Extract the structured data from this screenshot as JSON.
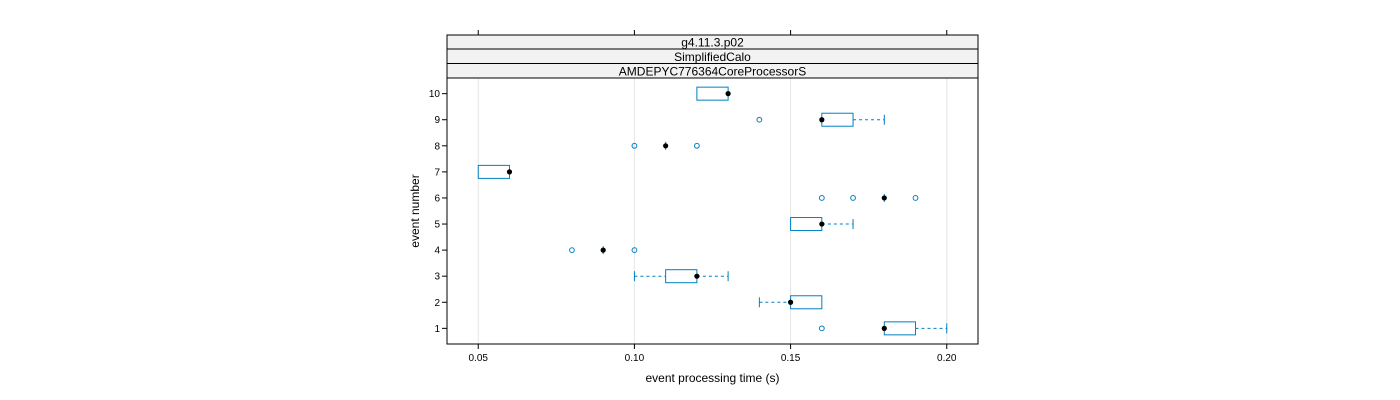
{
  "chart_data": {
    "type": "boxplot",
    "panel_strips": [
      "g4.11.3.p02",
      "SimplifiedCalo",
      "AMDEPYC776364CoreProcessorS"
    ],
    "xlabel": "event processing time (s)",
    "ylabel": "event number",
    "xlim": [
      0.04,
      0.21
    ],
    "x_ticks": [
      0.05,
      0.1,
      0.15,
      0.2
    ],
    "x_tick_labels": [
      "0.05",
      "0.10",
      "0.15",
      "0.20"
    ],
    "ylim": [
      0.4,
      10.6
    ],
    "grid": "vertical",
    "colors": {
      "box": "#0080c0",
      "median": "#000000",
      "strip_bg": "#f2f2f2",
      "grid": "#e6e6e6"
    },
    "boxes": [
      {
        "event": 1,
        "label": "1",
        "q1": 0.18,
        "median": 0.18,
        "q3": 0.19,
        "whisker_low": 0.18,
        "whisker_high": 0.2,
        "outliers": [
          0.16
        ]
      },
      {
        "event": 2,
        "label": "2",
        "q1": 0.15,
        "median": 0.15,
        "q3": 0.16,
        "whisker_low": 0.14,
        "whisker_high": 0.16,
        "outliers": []
      },
      {
        "event": 3,
        "label": "3",
        "q1": 0.11,
        "median": 0.12,
        "q3": 0.12,
        "whisker_low": 0.1,
        "whisker_high": 0.13,
        "outliers": []
      },
      {
        "event": 4,
        "label": "4",
        "q1": 0.09,
        "median": 0.09,
        "q3": 0.09,
        "whisker_low": 0.09,
        "whisker_high": 0.09,
        "outliers": [
          0.08,
          0.1
        ]
      },
      {
        "event": 5,
        "label": "5",
        "q1": 0.15,
        "median": 0.16,
        "q3": 0.16,
        "whisker_low": 0.15,
        "whisker_high": 0.17,
        "outliers": []
      },
      {
        "event": 6,
        "label": "6",
        "q1": 0.18,
        "median": 0.18,
        "q3": 0.18,
        "whisker_low": 0.18,
        "whisker_high": 0.18,
        "outliers": [
          0.16,
          0.17,
          0.19
        ]
      },
      {
        "event": 7,
        "label": "7",
        "q1": 0.05,
        "median": 0.06,
        "q3": 0.06,
        "whisker_low": 0.05,
        "whisker_high": 0.06,
        "outliers": []
      },
      {
        "event": 8,
        "label": "8",
        "q1": 0.11,
        "median": 0.11,
        "q3": 0.11,
        "whisker_low": 0.11,
        "whisker_high": 0.11,
        "outliers": [
          0.1,
          0.12
        ]
      },
      {
        "event": 9,
        "label": "9",
        "q1": 0.16,
        "median": 0.16,
        "q3": 0.17,
        "whisker_low": 0.16,
        "whisker_high": 0.18,
        "outliers": [
          0.14
        ]
      },
      {
        "event": 10,
        "label": "10",
        "q1": 0.12,
        "median": 0.13,
        "q3": 0.13,
        "whisker_low": 0.12,
        "whisker_high": 0.13,
        "outliers": []
      }
    ]
  }
}
